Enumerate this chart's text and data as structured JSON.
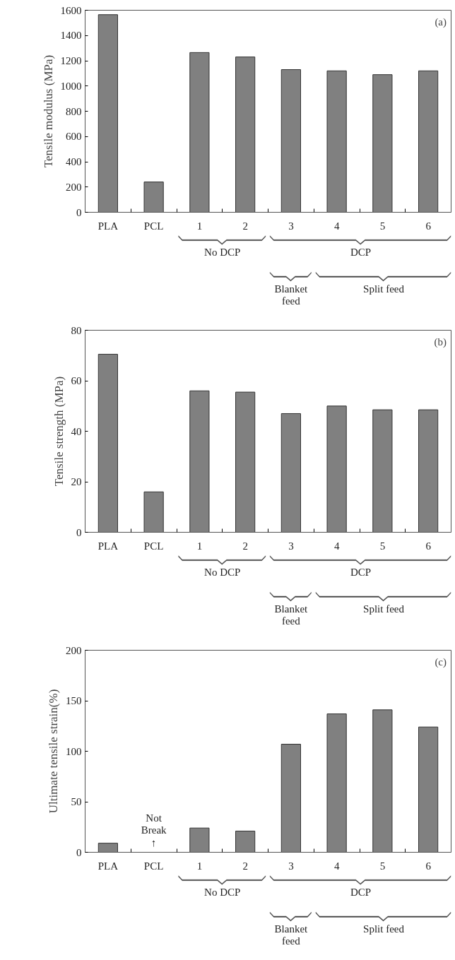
{
  "chart_data": [
    {
      "type": "bar",
      "categories": [
        "PLA",
        "PCL",
        "1",
        "2",
        "3",
        "4",
        "5",
        "6"
      ],
      "values": [
        1565,
        240,
        1265,
        1230,
        1130,
        1120,
        1090,
        1120
      ],
      "color": "#808080",
      "ylabel": "Tensile modulus (MPa)",
      "ylim": [
        0,
        1600
      ],
      "yticks": [
        0,
        200,
        400,
        600,
        800,
        1000,
        1200,
        1400,
        1600
      ],
      "grid": false,
      "annotations": [
        "(a)",
        "No DCP",
        "DCP",
        "Blanket\nfeed",
        "Split feed"
      ]
    },
    {
      "type": "bar",
      "categories": [
        "PLA",
        "PCL",
        "1",
        "2",
        "3",
        "4",
        "5",
        "6"
      ],
      "values": [
        70.5,
        16,
        56,
        55.5,
        47,
        50,
        48.5,
        48.5
      ],
      "color": "#808080",
      "ylabel": "Tensile strength (MPa)",
      "ylim": [
        0,
        80
      ],
      "yticks": [
        0,
        20,
        40,
        60,
        80
      ],
      "grid": false,
      "annotations": [
        "(b)",
        "No DCP",
        "DCP",
        "Blanket\nfeed",
        "Split feed"
      ]
    },
    {
      "type": "bar",
      "categories": [
        "PLA",
        "PCL",
        "1",
        "2",
        "3",
        "4",
        "5",
        "6"
      ],
      "values": [
        9,
        null,
        24,
        21,
        107,
        137,
        141,
        124
      ],
      "color": "#808080",
      "ylabel": "Ultimate tensile strain(%)",
      "ylim": [
        0,
        200
      ],
      "yticks": [
        0,
        50,
        100,
        150,
        200
      ],
      "grid": false,
      "annotations": [
        "(c)",
        "No DCP",
        "DCP",
        "Blanket\nfeed",
        "Split feed",
        "Not\nBreak\n↑"
      ]
    }
  ]
}
